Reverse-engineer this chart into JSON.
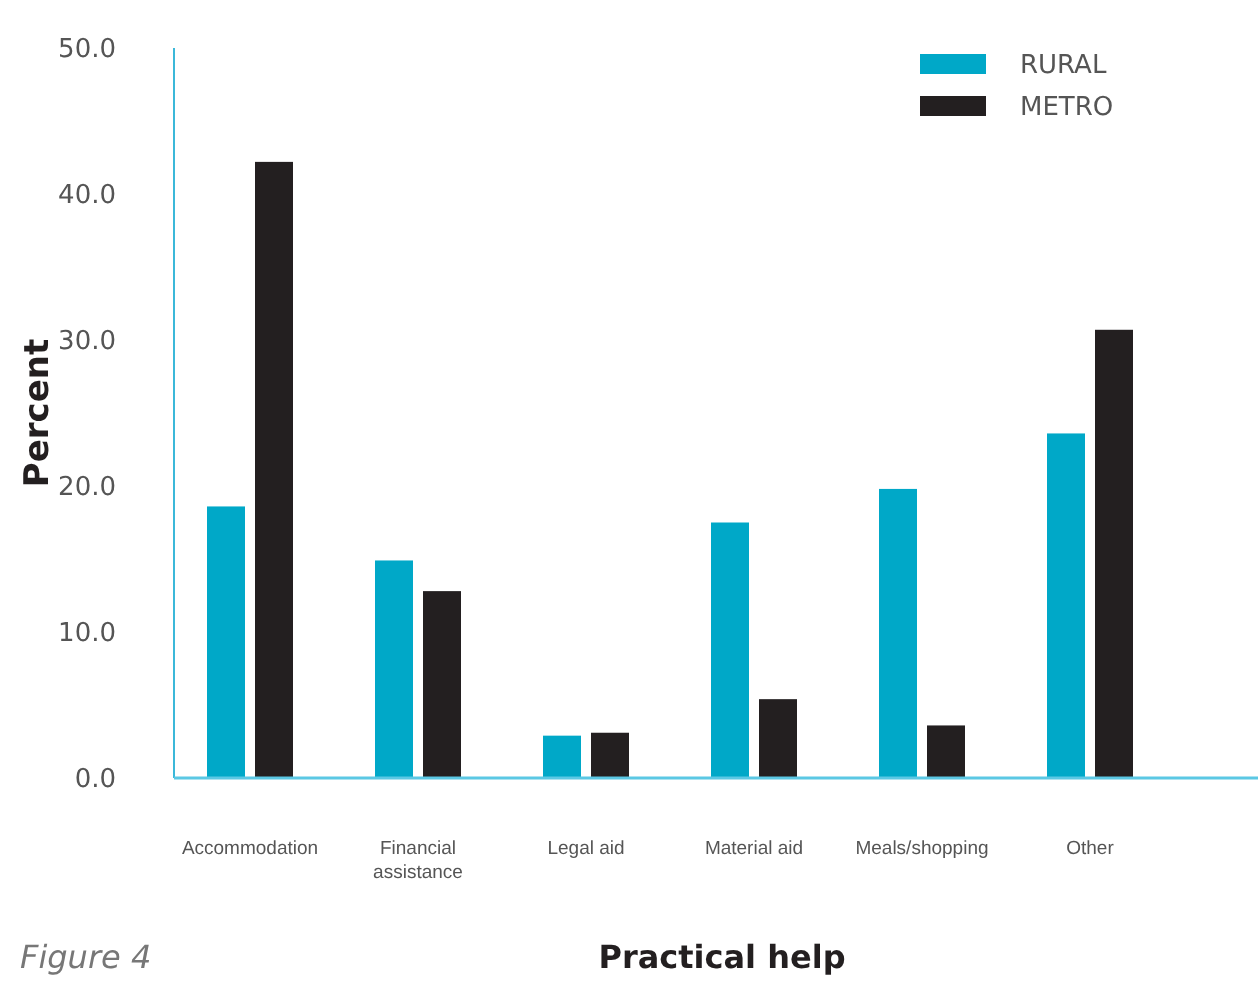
{
  "chart_data": {
    "type": "bar",
    "xlabel": "Practical help",
    "ylabel": "Percent",
    "categories": [
      "Accommodation",
      "Financial\nassistance",
      "Legal aid",
      "Material aid",
      "Meals/shopping",
      "Other"
    ],
    "series": [
      {
        "name": "RURAL",
        "color": "#00a8c8",
        "values": [
          18.6,
          14.9,
          2.9,
          17.5,
          19.8,
          23.6
        ]
      },
      {
        "name": "METRO",
        "color": "#231f20",
        "values": [
          42.2,
          12.8,
          3.1,
          5.4,
          3.6,
          30.7
        ]
      }
    ],
    "ylim": [
      0,
      50
    ],
    "yticks": [
      {
        "value": 0,
        "label": "0.0"
      },
      {
        "value": 10,
        "label": "10.0"
      },
      {
        "value": 20,
        "label": "20.0"
      },
      {
        "value": 30,
        "label": "30.0"
      },
      {
        "value": 40,
        "label": "40.0"
      },
      {
        "value": 50,
        "label": "50.0"
      }
    ],
    "grid": false,
    "legend": "top right",
    "annotations": [
      "Figure 4"
    ]
  }
}
